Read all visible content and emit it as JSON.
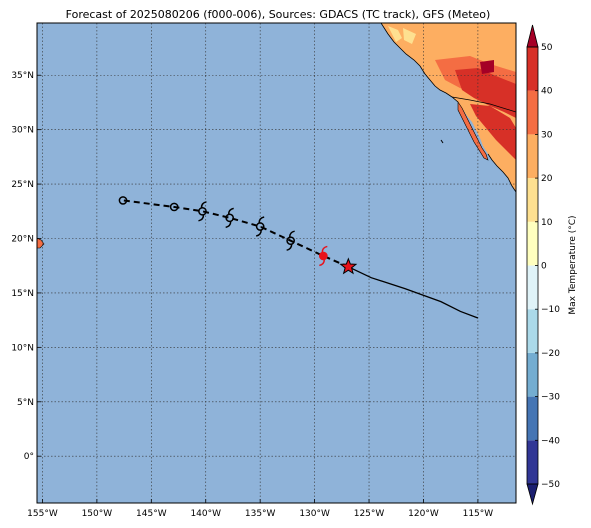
{
  "title": "Forecast of 2025080206 (f000-006), Sources: GDACS (TC track), GFS (Meteo)",
  "map": {
    "lon_range": [
      -155.5,
      -111.5
    ],
    "lat_range": [
      -4.3,
      39.8
    ],
    "ocean_color": "#8fb3d9",
    "grid": "dotted",
    "lon_ticks": [
      -155,
      -150,
      -145,
      -140,
      -135,
      -130,
      -125,
      -120,
      -115
    ],
    "lon_tick_labels": [
      "155°W",
      "150°W",
      "145°W",
      "140°W",
      "135°W",
      "130°W",
      "125°W",
      "120°W",
      "115°W"
    ],
    "lat_ticks": [
      0,
      5,
      10,
      15,
      20,
      25,
      30,
      35
    ],
    "lat_tick_labels": [
      "0°",
      "5°N",
      "10°N",
      "15°N",
      "20°N",
      "25°N",
      "30°N",
      "35°N"
    ]
  },
  "colorbar": {
    "label": "Max Temperature (°C)",
    "ticks": [
      -50,
      -40,
      -30,
      -20,
      -10,
      0,
      10,
      20,
      30,
      40,
      50
    ],
    "tick_labels": [
      "−50",
      "−40",
      "−30",
      "−20",
      "−10",
      "0",
      "10",
      "20",
      "30",
      "40",
      "50"
    ],
    "colors": [
      "#313695",
      "#4575b4",
      "#74add1",
      "#abd9e9",
      "#e0f3f8",
      "#ffffbf",
      "#fee090",
      "#fdae61",
      "#f46d43",
      "#d73027",
      "#a50026"
    ]
  },
  "track": {
    "past_positions": [
      {
        "lon": -129.2,
        "lat": 18.4,
        "marker": "current-cyclone"
      },
      {
        "lon": -132.2,
        "lat": 19.8,
        "marker": "cyclone"
      },
      {
        "lon": -135.0,
        "lat": 21.1,
        "marker": "cyclone"
      },
      {
        "lon": -137.8,
        "lat": 21.9,
        "marker": "cyclone"
      },
      {
        "lon": -140.3,
        "lat": 22.5,
        "marker": "cyclone"
      },
      {
        "lon": -142.9,
        "lat": 22.9,
        "marker": "low"
      },
      {
        "lon": -147.6,
        "lat": 23.5,
        "marker": "low"
      }
    ],
    "current_position": {
      "lon": -126.9,
      "lat": 17.4
    },
    "forecast_path": [
      {
        "lon": -126.9,
        "lat": 17.4
      },
      {
        "lon": -124.8,
        "lat": 16.4
      },
      {
        "lon": -121.7,
        "lat": 15.4
      },
      {
        "lon": -118.4,
        "lat": 14.2
      },
      {
        "lon": -116.6,
        "lat": 13.3
      },
      {
        "lon": -115.0,
        "lat": 12.7
      }
    ],
    "colors": {
      "track": "#000000",
      "current": "#e8121b"
    }
  }
}
